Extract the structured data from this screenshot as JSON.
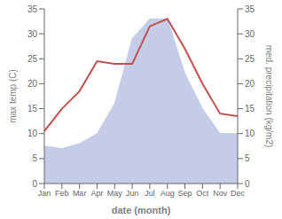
{
  "chart_data": {
    "type": "line",
    "xlabel": "date (month)",
    "ylabel": "max temp (C)",
    "y2label": "med. precipitation (kg/m2)",
    "categories": [
      "Jan",
      "Feb",
      "Mar",
      "Apr",
      "May",
      "Jun",
      "Jul",
      "Aug",
      "Sep",
      "Oct",
      "Nov",
      "Dec"
    ],
    "series": [
      {
        "type": "area",
        "axis": "y2",
        "color": "#c5cce8",
        "values": [
          7.5,
          7.0,
          8.0,
          10.0,
          16.0,
          29.0,
          33.0,
          33.0,
          22.0,
          15.0,
          10.0,
          10.0
        ]
      },
      {
        "type": "line",
        "color": "#c0504d",
        "values": [
          10.5,
          15.0,
          18.5,
          24.5,
          24.0,
          24.0,
          31.5,
          33.0,
          27.0,
          20.0,
          14.0,
          13.5
        ]
      }
    ],
    "ylim": [
      0,
      35
    ],
    "yticks": [
      0,
      5,
      10,
      15,
      20,
      25,
      30,
      35
    ],
    "y2lim": [
      0,
      35
    ],
    "y2ticks": [
      0,
      5,
      10,
      15,
      20,
      25,
      30,
      35
    ],
    "grid": false
  }
}
